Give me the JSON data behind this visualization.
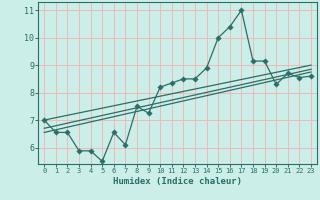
{
  "xlabel": "Humidex (Indice chaleur)",
  "background_color": "#cceee8",
  "grid_color": "#f0b8b8",
  "line_color": "#2a6e68",
  "xlim": [
    -0.5,
    23.5
  ],
  "ylim": [
    5.4,
    11.3
  ],
  "yticks": [
    6,
    7,
    8,
    9,
    10,
    11
  ],
  "xticks": [
    0,
    1,
    2,
    3,
    4,
    5,
    6,
    7,
    8,
    9,
    10,
    11,
    12,
    13,
    14,
    15,
    16,
    17,
    18,
    19,
    20,
    21,
    22,
    23
  ],
  "series1_x": [
    0,
    1,
    2,
    3,
    4,
    5,
    6,
    7,
    8,
    9,
    10,
    11,
    12,
    13,
    14,
    15,
    16,
    17,
    18,
    19,
    20,
    21,
    22,
    23
  ],
  "series1_y": [
    7.0,
    6.55,
    6.55,
    5.88,
    5.88,
    5.5,
    6.55,
    6.1,
    7.5,
    7.25,
    8.2,
    8.35,
    8.5,
    8.5,
    8.9,
    10.0,
    10.4,
    11.0,
    9.15,
    9.15,
    8.3,
    8.7,
    8.55,
    8.6
  ],
  "series2_x": [
    0,
    23
  ],
  "series2_y": [
    6.55,
    8.75
  ],
  "series3_x": [
    0,
    23
  ],
  "series3_y": [
    7.0,
    9.0
  ],
  "series4_x": [
    0,
    23
  ],
  "series4_y": [
    6.7,
    8.85
  ]
}
